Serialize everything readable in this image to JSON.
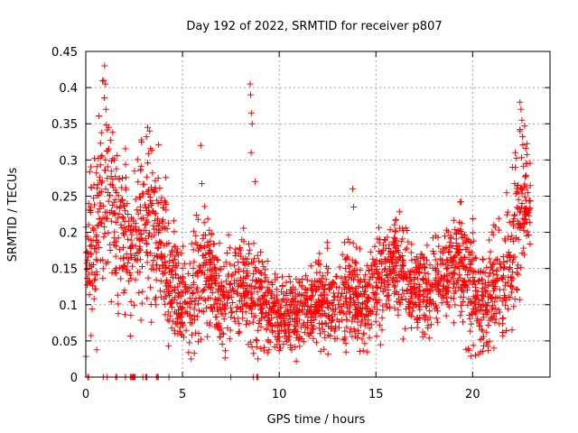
{
  "chart_data": {
    "type": "scatter",
    "title": "Day 192 of 2022, SRMTID for receiver p807",
    "xlabel": "GPS time / hours",
    "ylabel": "SRMTID / TECUs",
    "xlim": [
      0,
      24
    ],
    "ylim": [
      0,
      0.45
    ],
    "xticks": [
      0,
      5,
      10,
      15,
      20
    ],
    "xtick_labels": [
      "0",
      "5",
      "10",
      "15",
      "20"
    ],
    "yticks": [
      0,
      0.05,
      0.1,
      0.15,
      0.2,
      0.25,
      0.3,
      0.35,
      0.4,
      0.45
    ],
    "ytick_labels": [
      "0",
      "0.05",
      "0.1",
      "0.15",
      "0.2",
      "0.25",
      "0.3",
      "0.35",
      "0.4",
      "0.45"
    ],
    "grid": true,
    "marker": "+",
    "color": "#ff0000",
    "series": [
      {
        "name": "SRMTID",
        "points_count": 2600,
        "seed": 192,
        "envelope": {
          "x": [
            0.0,
            0.5,
            1.0,
            1.5,
            2.0,
            2.5,
            3.0,
            3.5,
            4.0,
            4.5,
            5.0,
            5.5,
            6.0,
            6.5,
            7.0,
            7.5,
            8.0,
            8.5,
            9.0,
            9.5,
            10.0,
            10.5,
            11.0,
            11.5,
            12.0,
            12.5,
            13.0,
            13.5,
            14.0,
            14.5,
            15.0,
            15.5,
            16.0,
            16.5,
            17.0,
            17.5,
            18.0,
            18.5,
            19.0,
            19.5,
            20.0,
            20.5,
            21.0,
            21.5,
            22.0,
            22.5,
            23.0
          ],
          "mean": [
            0.16,
            0.2,
            0.25,
            0.22,
            0.2,
            0.18,
            0.22,
            0.2,
            0.18,
            0.14,
            0.1,
            0.12,
            0.16,
            0.14,
            0.11,
            0.12,
            0.13,
            0.12,
            0.11,
            0.09,
            0.085,
            0.085,
            0.09,
            0.095,
            0.1,
            0.1,
            0.095,
            0.11,
            0.11,
            0.1,
            0.13,
            0.145,
            0.15,
            0.14,
            0.12,
            0.12,
            0.125,
            0.14,
            0.15,
            0.16,
            0.12,
            0.09,
            0.12,
            0.14,
            0.18,
            0.22,
            0.25
          ],
          "spread": [
            0.06,
            0.08,
            0.08,
            0.07,
            0.06,
            0.06,
            0.07,
            0.06,
            0.06,
            0.05,
            0.045,
            0.05,
            0.06,
            0.05,
            0.04,
            0.045,
            0.05,
            0.05,
            0.045,
            0.035,
            0.03,
            0.03,
            0.03,
            0.035,
            0.035,
            0.035,
            0.035,
            0.04,
            0.04,
            0.035,
            0.04,
            0.04,
            0.04,
            0.04,
            0.035,
            0.035,
            0.04,
            0.04,
            0.045,
            0.05,
            0.045,
            0.04,
            0.05,
            0.05,
            0.06,
            0.06,
            0.05
          ]
        },
        "outliers": [
          {
            "x": 0.97,
            "y": 0.43
          },
          {
            "x": 0.93,
            "y": 0.41
          },
          {
            "x": 1.02,
            "y": 0.405
          },
          {
            "x": 1.04,
            "y": 0.37
          },
          {
            "x": 1.18,
            "y": 0.345
          },
          {
            "x": 3.2,
            "y": 0.345
          },
          {
            "x": 3.3,
            "y": 0.34
          },
          {
            "x": 5.95,
            "y": 0.32
          },
          {
            "x": 8.5,
            "y": 0.405
          },
          {
            "x": 8.52,
            "y": 0.39
          },
          {
            "x": 8.56,
            "y": 0.365
          },
          {
            "x": 8.6,
            "y": 0.35
          },
          {
            "x": 8.55,
            "y": 0.31
          },
          {
            "x": 8.75,
            "y": 0.27
          },
          {
            "x": 8.9,
            "y": 0.025
          },
          {
            "x": 13.8,
            "y": 0.26
          },
          {
            "x": 13.85,
            "y": 0.235
          },
          {
            "x": 20.15,
            "y": 0.03
          },
          {
            "x": 21.1,
            "y": 0.04
          },
          {
            "x": 22.45,
            "y": 0.38
          },
          {
            "x": 22.5,
            "y": 0.37
          },
          {
            "x": 22.55,
            "y": 0.355
          },
          {
            "x": 22.45,
            "y": 0.34
          },
          {
            "x": 22.2,
            "y": 0.31
          }
        ],
        "zeros": [
          0.1,
          0.15,
          0.9,
          1.1,
          1.55,
          1.6,
          2.05,
          2.3,
          2.35,
          2.4,
          2.45,
          2.5,
          2.55,
          2.95,
          3.1,
          3.15,
          3.65,
          3.7,
          3.75,
          4.3,
          7.5,
          8.65,
          8.85,
          8.9
        ]
      }
    ]
  }
}
